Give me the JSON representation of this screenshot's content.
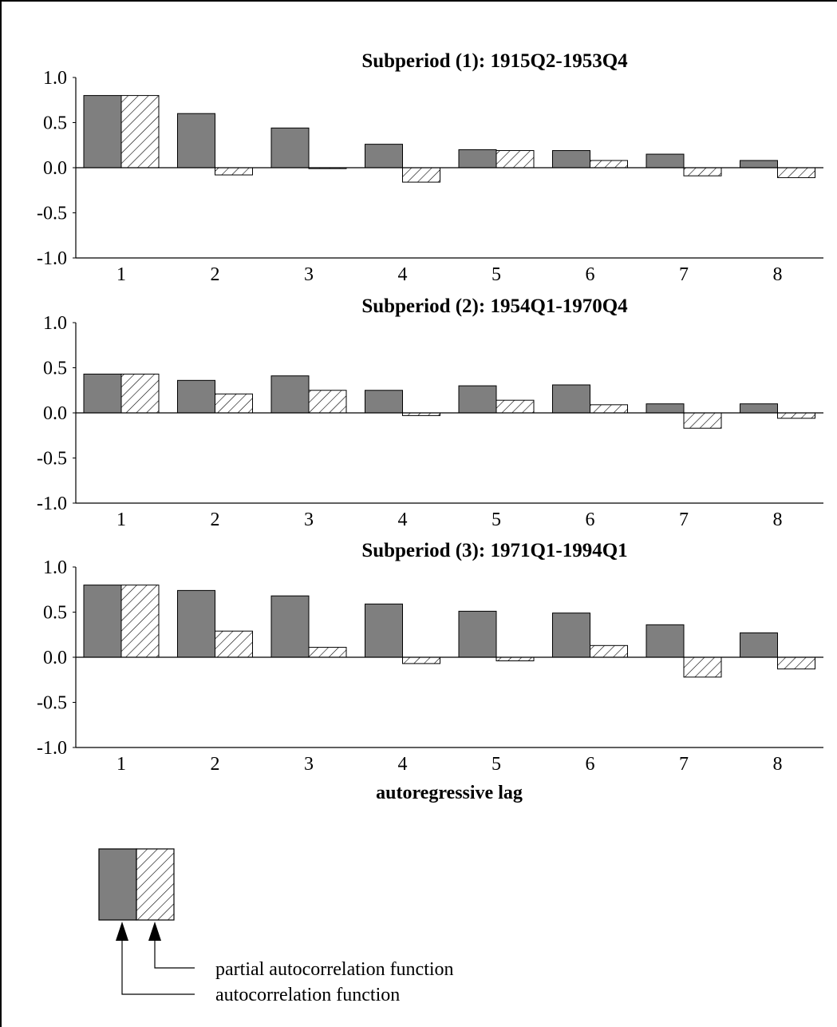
{
  "chart_data": [
    {
      "type": "bar",
      "title": "Subperiod (1): 1915Q2-1953Q4",
      "categories": [
        "1",
        "2",
        "3",
        "4",
        "5",
        "6",
        "7",
        "8"
      ],
      "series": [
        {
          "name": "autocorrelation function",
          "values": [
            0.8,
            0.6,
            0.44,
            0.26,
            0.2,
            0.19,
            0.15,
            0.08
          ]
        },
        {
          "name": "partial autocorrelation function",
          "values": [
            0.8,
            -0.08,
            -0.01,
            -0.16,
            0.19,
            0.08,
            -0.09,
            -0.11
          ]
        }
      ],
      "yticks": [
        "1.0",
        "0.5",
        "0.0",
        "-0.5",
        "-1.0"
      ],
      "ylim": [
        -1.0,
        1.0
      ],
      "xlabel": "",
      "ylabel": ""
    },
    {
      "type": "bar",
      "title": "Subperiod (2): 1954Q1-1970Q4",
      "categories": [
        "1",
        "2",
        "3",
        "4",
        "5",
        "6",
        "7",
        "8"
      ],
      "series": [
        {
          "name": "autocorrelation function",
          "values": [
            0.43,
            0.36,
            0.41,
            0.25,
            0.3,
            0.31,
            0.1,
            0.1
          ]
        },
        {
          "name": "partial autocorrelation function",
          "values": [
            0.43,
            0.21,
            0.25,
            -0.03,
            0.14,
            0.09,
            -0.17,
            -0.06
          ]
        }
      ],
      "yticks": [
        "1.0",
        "0.5",
        "0.0",
        "-0.5",
        "-1.0"
      ],
      "ylim": [
        -1.0,
        1.0
      ],
      "xlabel": "",
      "ylabel": ""
    },
    {
      "type": "bar",
      "title": "Subperiod (3): 1971Q1-1994Q1",
      "categories": [
        "1",
        "2",
        "3",
        "4",
        "5",
        "6",
        "7",
        "8"
      ],
      "series": [
        {
          "name": "autocorrelation function",
          "values": [
            0.8,
            0.74,
            0.68,
            0.59,
            0.51,
            0.49,
            0.36,
            0.27
          ]
        },
        {
          "name": "partial autocorrelation function",
          "values": [
            0.8,
            0.29,
            0.11,
            -0.07,
            -0.04,
            0.13,
            -0.22,
            -0.13
          ]
        }
      ],
      "yticks": [
        "1.0",
        "0.5",
        "0.0",
        "-0.5",
        "-1.0"
      ],
      "ylim": [
        -1.0,
        1.0
      ],
      "xlabel": "autoregressive lag",
      "ylabel": ""
    }
  ],
  "legend": {
    "pacf_label": "partial autocorrelation function",
    "acf_label": "autocorrelation function"
  },
  "colors": {
    "acf_fill": "#7f7f7f",
    "pacf_hatch": "#000000",
    "axis": "#000000"
  }
}
